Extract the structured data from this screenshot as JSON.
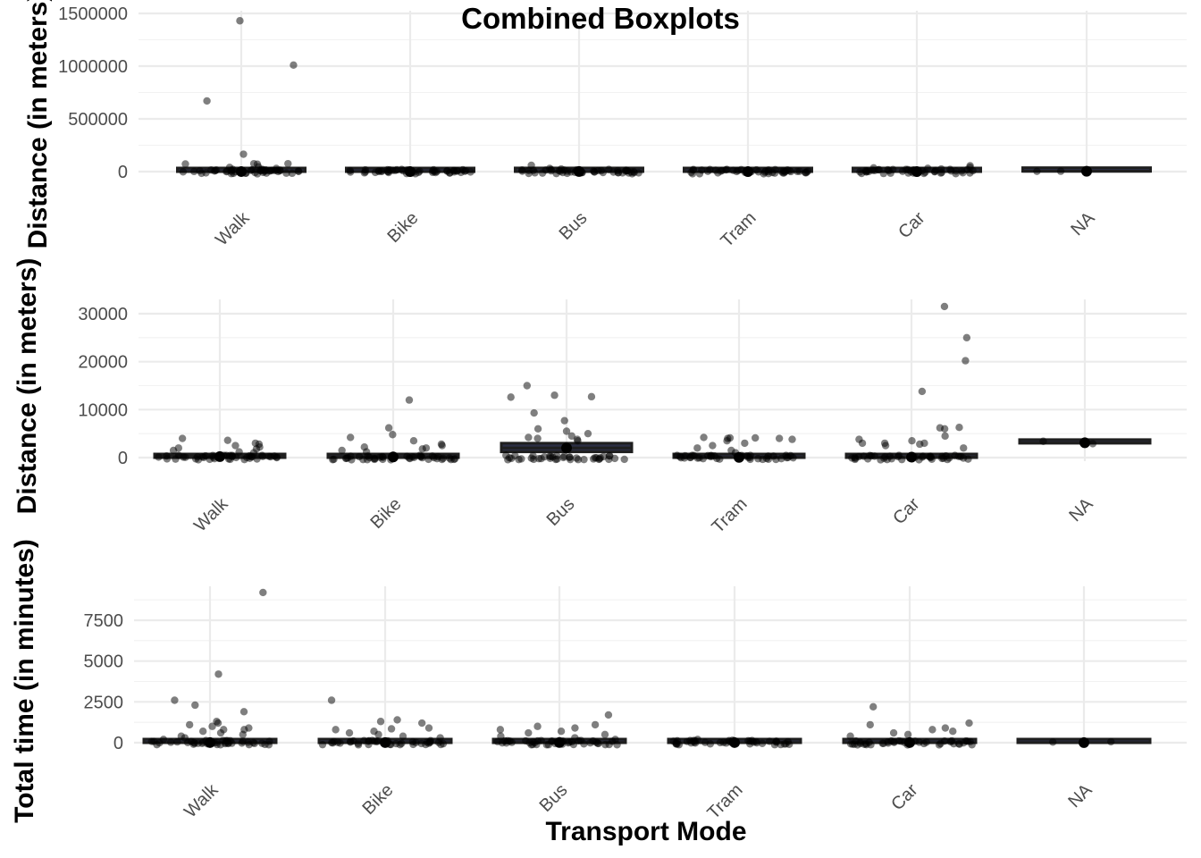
{
  "colors": {
    "point": "#000000",
    "box": "#1f1f1f",
    "box_fill": "#2b2e45",
    "tick_text": "#4d4d4d",
    "grid": "#ebebeb"
  },
  "chart_data": {
    "title": "Combined Boxplots",
    "xlabel": "Transport Mode",
    "categories": [
      "Walk",
      "Bike",
      "Bus",
      "Tram",
      "Car",
      "NA"
    ],
    "panels": [
      {
        "type": "box",
        "ylabel": "Distance (in meters)",
        "ylim": [
          -20000,
          1500000
        ],
        "yticks": [
          0,
          500000,
          1000000,
          1500000
        ],
        "yticklabels": [
          "0",
          "500000",
          "1000000",
          "1500000"
        ],
        "boxes": [
          {
            "category": "Walk",
            "q1": 0,
            "median": 500,
            "q3": 2000
          },
          {
            "category": "Bike",
            "q1": 0,
            "median": 300,
            "q3": 1500
          },
          {
            "category": "Bus",
            "q1": 500,
            "median": 1500,
            "q3": 3000
          },
          {
            "category": "Tram",
            "q1": 0,
            "median": 200,
            "q3": 1500
          },
          {
            "category": "Car",
            "q1": 0,
            "median": 300,
            "q3": 2000
          },
          {
            "category": "NA",
            "q1": 3000,
            "median": 3100,
            "q3": 3200
          }
        ],
        "outliers": [
          {
            "category": "Walk",
            "values": [
              1430000,
              1010000,
              670000,
              165000,
              75000,
              75000,
              72000,
              70000,
              45000,
              40000,
              30000,
              20000,
              15000,
              10000,
              5000
            ]
          },
          {
            "category": "Bike",
            "values": [
              8000,
              6000,
              5000,
              4000,
              3000,
              2000,
              1500,
              1000
            ]
          },
          {
            "category": "Bus",
            "values": [
              60000,
              30000,
              25000,
              15000,
              12000,
              10000,
              8000,
              6000,
              5000
            ]
          },
          {
            "category": "Tram",
            "values": [
              20000,
              15000,
              10000,
              8000,
              5000,
              4000,
              3000
            ]
          },
          {
            "category": "Car",
            "values": [
              55000,
              40000,
              35000,
              31000,
              25000,
              20000,
              14000,
              10000,
              6000
            ]
          },
          {
            "category": "NA",
            "values": [
              3300,
              2900
            ]
          }
        ]
      },
      {
        "type": "box",
        "ylabel": "Distance (in meters)",
        "ylim": [
          -1000,
          33000
        ],
        "yticks": [
          0,
          10000,
          20000,
          30000
        ],
        "yticklabels": [
          "0",
          "10000",
          "20000",
          "30000"
        ],
        "boxes": [
          {
            "category": "Walk",
            "q1": 0,
            "median": 200,
            "q3": 500
          },
          {
            "category": "Bike",
            "q1": 0,
            "median": 150,
            "q3": 600
          },
          {
            "category": "Bus",
            "q1": 1200,
            "median": 2000,
            "q3": 3000
          },
          {
            "category": "Tram",
            "q1": 0,
            "median": 50,
            "q3": 200
          },
          {
            "category": "Car",
            "q1": 0,
            "median": 100,
            "q3": 300
          },
          {
            "category": "NA",
            "q1": 3000,
            "median": 3100,
            "q3": 3250
          }
        ],
        "outliers": [
          {
            "category": "Walk",
            "values": [
              4000,
              3600,
              3000,
              2800,
              2500,
              2200,
              2000,
              1800,
              1500,
              1200,
              1000
            ]
          },
          {
            "category": "Bike",
            "values": [
              12000,
              6200,
              4800,
              4200,
              3500,
              2800,
              2500,
              2200,
              2000,
              1800,
              1500,
              1200
            ]
          },
          {
            "category": "Bus",
            "values": [
              15000,
              13000,
              12700,
              12600,
              9300,
              7700,
              6000,
              5500,
              5000,
              4500,
              4200,
              4000,
              3800,
              3500
            ]
          },
          {
            "category": "Tram",
            "values": [
              4200,
              4100,
              4100,
              4000,
              4000,
              3800,
              3500,
              3000,
              2500,
              2000,
              1500,
              1000
            ]
          },
          {
            "category": "Car",
            "values": [
              31500,
              25000,
              20200,
              13800,
              6300,
              6200,
              6000,
              4500,
              3800,
              3500,
              3000,
              3000,
              3000,
              2800,
              2500,
              2000
            ]
          },
          {
            "category": "NA",
            "values": [
              3400,
              2900
            ]
          }
        ]
      },
      {
        "type": "box",
        "ylabel": "Total time (in minutes)",
        "ylim": [
          -250,
          9500
        ],
        "yticks": [
          0,
          2500,
          5000,
          7500
        ],
        "yticklabels": [
          "0",
          "2500",
          "5000",
          "7500"
        ],
        "boxes": [
          {
            "category": "Walk",
            "q1": 0,
            "median": 10,
            "q3": 60
          },
          {
            "category": "Bike",
            "q1": 0,
            "median": 10,
            "q3": 40
          },
          {
            "category": "Bus",
            "q1": 0,
            "median": 15,
            "q3": 50
          },
          {
            "category": "Tram",
            "q1": 0,
            "median": 10,
            "q3": 40
          },
          {
            "category": "Car",
            "q1": 0,
            "median": 10,
            "q3": 40
          },
          {
            "category": "NA",
            "q1": 0,
            "median": 5,
            "q3": 30
          }
        ],
        "outliers": [
          {
            "category": "Walk",
            "values": [
              9200,
              4200,
              2600,
              2300,
              1900,
              1300,
              1200,
              1100,
              1000,
              900,
              800,
              800,
              700,
              600,
              500,
              400,
              300,
              200
            ]
          },
          {
            "category": "Bike",
            "values": [
              2600,
              1400,
              1300,
              1200,
              900,
              850,
              800,
              700,
              600,
              500,
              400,
              300
            ]
          },
          {
            "category": "Bus",
            "values": [
              1700,
              1100,
              1000,
              900,
              800,
              700,
              600,
              500,
              400,
              300,
              200
            ]
          },
          {
            "category": "Tram",
            "values": [
              200,
              150,
              100
            ]
          },
          {
            "category": "Car",
            "values": [
              2200,
              1200,
              1100,
              900,
              800,
              700,
              600,
              500,
              400
            ]
          },
          {
            "category": "NA",
            "values": [
              60,
              40
            ]
          }
        ]
      }
    ]
  }
}
